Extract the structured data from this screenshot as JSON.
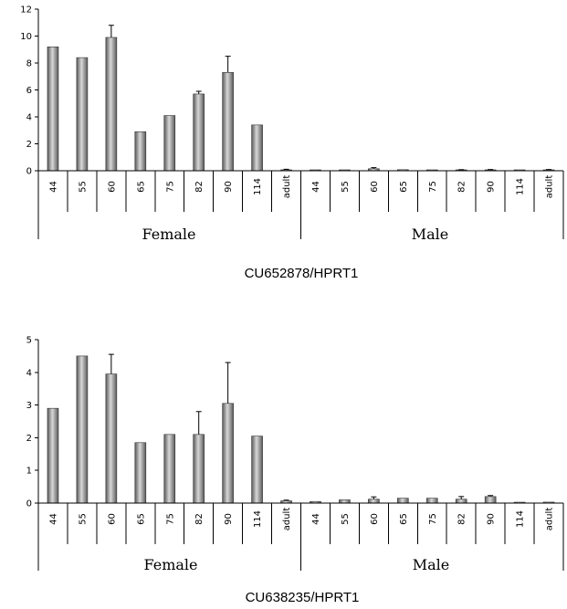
{
  "colors": {
    "bar_dark": "#5a5a5a",
    "bar_light": "#d8d8d8",
    "axis": "#000000"
  },
  "chart_data": [
    {
      "type": "bar",
      "title": "CU652878/HPRT1",
      "xlabel": "",
      "ylabel": "",
      "ylim": [
        0,
        12
      ],
      "yticks": [
        "0",
        "2",
        "4",
        "6",
        "8",
        "10",
        "12"
      ],
      "grid": false,
      "groups": [
        "Female",
        "Male"
      ],
      "categories": [
        "44",
        "55",
        "60",
        "65",
        "75",
        "82",
        "90",
        "114",
        "adult",
        "44",
        "55",
        "60",
        "65",
        "75",
        "82",
        "90",
        "114",
        "adult"
      ],
      "values": [
        9.2,
        8.4,
        9.9,
        2.9,
        4.1,
        5.7,
        7.3,
        3.4,
        0.07,
        0.03,
        0.03,
        0.15,
        0.08,
        0.03,
        0.05,
        0.06,
        0.0,
        0.06
      ],
      "errors": [
        0,
        0,
        0.9,
        0,
        0,
        0.2,
        1.2,
        0,
        0.04,
        0,
        0,
        0.08,
        0,
        0,
        0.03,
        0.03,
        0,
        0.03
      ]
    },
    {
      "type": "bar",
      "title": "CU638235/HPRT1",
      "xlabel": "",
      "ylabel": "",
      "ylim": [
        0,
        5
      ],
      "yticks": [
        "0",
        "1",
        "2",
        "3",
        "4",
        "5"
      ],
      "grid": false,
      "groups": [
        "Female",
        "Male"
      ],
      "categories": [
        "44",
        "55",
        "60",
        "65",
        "75",
        "82",
        "90",
        "114",
        "adult",
        "44",
        "55",
        "60",
        "65",
        "75",
        "82",
        "90",
        "114",
        "adult"
      ],
      "values": [
        2.9,
        4.5,
        3.95,
        1.85,
        2.1,
        2.1,
        3.05,
        2.05,
        0.07,
        0.05,
        0.1,
        0.12,
        0.15,
        0.15,
        0.12,
        0.2,
        0.01,
        0.03
      ],
      "errors": [
        0,
        0,
        0.6,
        0,
        0,
        0.7,
        1.25,
        0,
        0.02,
        0,
        0,
        0.07,
        0,
        0,
        0.08,
        0.03,
        0,
        0
      ]
    }
  ]
}
